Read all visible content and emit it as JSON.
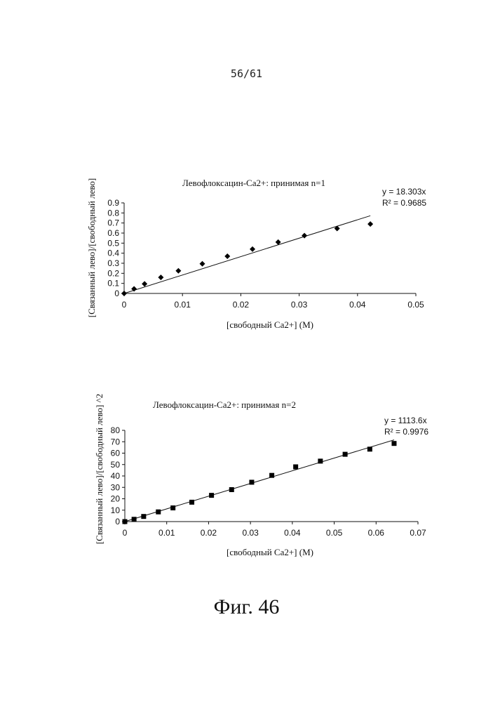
{
  "page": {
    "page_number": "56/61",
    "figure_caption": "Фиг. 46"
  },
  "chart_data": [
    {
      "type": "scatter",
      "title": "Левофлоксацин-Ca2+: принимая n=1",
      "xlabel": "[свободный Ca2+] (M)",
      "ylabel": "[Связанный лево]/[свободный лево]",
      "xlim": [
        0,
        0.05
      ],
      "ylim": [
        0,
        0.9
      ],
      "x_ticks": [
        "0",
        "0.01",
        "0.02",
        "0.03",
        "0.04",
        "0.05"
      ],
      "y_ticks": [
        "0",
        "0.1",
        "0.2",
        "0.3",
        "0.4",
        "0.5",
        "0.6",
        "0.7",
        "0.8",
        "0.9"
      ],
      "x_tick_values": [
        0,
        0.01,
        0.02,
        0.03,
        0.04,
        0.05
      ],
      "y_tick_values": [
        0,
        0.1,
        0.2,
        0.3,
        0.4,
        0.5,
        0.6,
        0.7,
        0.8,
        0.9
      ],
      "marker": "diamond",
      "x": [
        0,
        0.0017,
        0.0035,
        0.0063,
        0.0093,
        0.0134,
        0.0177,
        0.022,
        0.0264,
        0.0309,
        0.0365,
        0.0422
      ],
      "y": [
        0,
        0.045,
        0.095,
        0.16,
        0.225,
        0.295,
        0.37,
        0.44,
        0.51,
        0.575,
        0.645,
        0.69
      ],
      "trendline": {
        "slope": 18.303,
        "x_range": [
          0,
          0.0422
        ]
      },
      "equation": "y = 18.303x",
      "r_squared": "R² = 0.9685",
      "grid": false
    },
    {
      "type": "scatter",
      "title": "Левофлоксацин-Ca2+: принимая n=2",
      "xlabel": "[свободный Ca2+] (M)",
      "ylabel": "[Связанный лево]/[свободный лево] ^2",
      "xlim": [
        0,
        0.07
      ],
      "ylim": [
        0,
        80
      ],
      "x_ticks": [
        "0",
        "0.01",
        "0.02",
        "0.03",
        "0.04",
        "0.05",
        "0.06",
        "0.07"
      ],
      "y_ticks": [
        "0",
        "10",
        "20",
        "30",
        "40",
        "50",
        "60",
        "70",
        "80"
      ],
      "x_tick_values": [
        0,
        0.01,
        0.02,
        0.03,
        0.04,
        0.05,
        0.06,
        0.07
      ],
      "y_tick_values": [
        0,
        10,
        20,
        30,
        40,
        50,
        60,
        70,
        80
      ],
      "marker": "square",
      "x": [
        0,
        0.0022,
        0.0045,
        0.008,
        0.0115,
        0.016,
        0.0207,
        0.0255,
        0.0303,
        0.0351,
        0.0408,
        0.0467,
        0.0526,
        0.0585,
        0.0643
      ],
      "y": [
        0,
        2,
        4.5,
        8.5,
        12,
        17,
        23,
        28,
        34.5,
        40.5,
        48,
        53,
        59,
        63.5,
        68.5
      ],
      "trendline": {
        "slope": 1113.6,
        "x_range": [
          0,
          0.0643
        ]
      },
      "equation": "y = 1113.6x",
      "r_squared": "R² = 0.9976",
      "grid": false
    }
  ]
}
